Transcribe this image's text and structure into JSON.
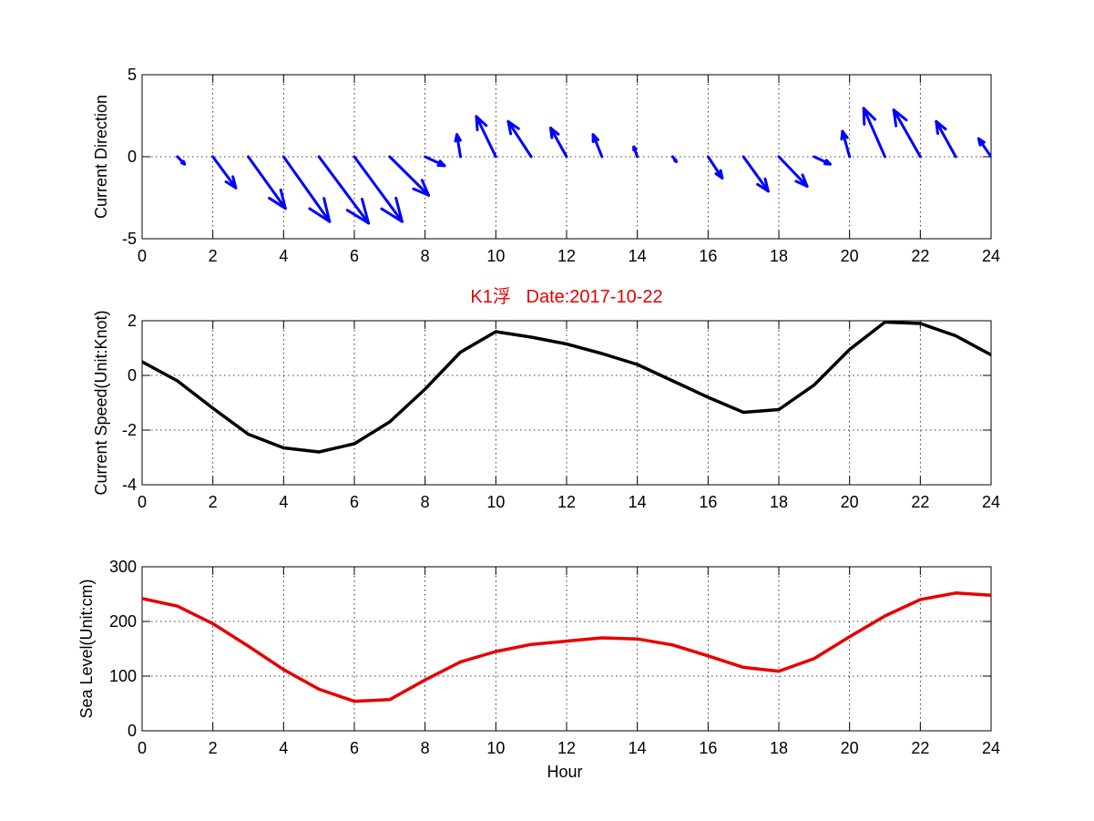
{
  "colors": {
    "quiver": "#0000ff",
    "speed": "#000000",
    "sea_level": "#e60000",
    "title": "#e60000"
  },
  "title": "K1浮   Date:2017-10-22",
  "chart_data": [
    {
      "type": "quiver",
      "ylabel": "Current Direction",
      "xlim": [
        0,
        24
      ],
      "ylim": [
        -5,
        5
      ],
      "xticks": [
        0,
        2,
        4,
        6,
        8,
        10,
        12,
        14,
        16,
        18,
        20,
        22,
        24
      ],
      "yticks": [
        -5,
        0,
        5
      ],
      "grid": true,
      "arrows": [
        {
          "x": 1,
          "u": 0.2,
          "v": -0.45
        },
        {
          "x": 2,
          "u": 0.65,
          "v": -1.9
        },
        {
          "x": 3,
          "u": 1.05,
          "v": -3.15
        },
        {
          "x": 4,
          "u": 1.3,
          "v": -3.95
        },
        {
          "x": 5,
          "u": 1.4,
          "v": -4.05
        },
        {
          "x": 6,
          "u": 1.35,
          "v": -3.95
        },
        {
          "x": 7,
          "u": 1.1,
          "v": -2.35
        },
        {
          "x": 8,
          "u": 0.55,
          "v": -0.55
        },
        {
          "x": 9,
          "u": -0.1,
          "v": 1.35
        },
        {
          "x": 10,
          "u": -0.55,
          "v": 2.45
        },
        {
          "x": 11,
          "u": -0.65,
          "v": 2.15
        },
        {
          "x": 12,
          "u": -0.45,
          "v": 1.75
        },
        {
          "x": 13,
          "u": -0.25,
          "v": 1.35
        },
        {
          "x": 14,
          "u": -0.1,
          "v": 0.6
        },
        {
          "x": 15,
          "u": 0.1,
          "v": -0.3
        },
        {
          "x": 16,
          "u": 0.4,
          "v": -1.3
        },
        {
          "x": 17,
          "u": 0.7,
          "v": -2.1
        },
        {
          "x": 18,
          "u": 0.8,
          "v": -1.8
        },
        {
          "x": 19,
          "u": 0.45,
          "v": -0.45
        },
        {
          "x": 20,
          "u": -0.2,
          "v": 1.55
        },
        {
          "x": 21,
          "u": -0.6,
          "v": 2.95
        },
        {
          "x": 22,
          "u": -0.75,
          "v": 2.85
        },
        {
          "x": 23,
          "u": -0.55,
          "v": 2.15
        },
        {
          "x": 24,
          "u": -0.35,
          "v": 1.1
        }
      ]
    },
    {
      "type": "line",
      "ylabel": "Current Speed(Unit:Knot)",
      "xlim": [
        0,
        24
      ],
      "ylim": [
        -4,
        2
      ],
      "xticks": [
        0,
        2,
        4,
        6,
        8,
        10,
        12,
        14,
        16,
        18,
        20,
        22,
        24
      ],
      "yticks": [
        -4,
        -2,
        0,
        2
      ],
      "grid": true,
      "x": [
        0,
        1,
        2,
        3,
        4,
        5,
        6,
        7,
        8,
        9,
        10,
        11,
        12,
        13,
        14,
        15,
        16,
        17,
        18,
        19,
        20,
        21,
        22,
        23,
        24
      ],
      "y": [
        0.5,
        -0.2,
        -1.2,
        -2.15,
        -2.65,
        -2.8,
        -2.5,
        -1.7,
        -0.5,
        0.85,
        1.6,
        1.4,
        1.15,
        0.8,
        0.4,
        -0.2,
        -0.8,
        -1.35,
        -1.25,
        -0.35,
        0.95,
        1.95,
        1.9,
        1.45,
        0.75
      ]
    },
    {
      "type": "line",
      "ylabel": "Sea Level(Unit:cm)",
      "xlabel": "Hour",
      "xlim": [
        0,
        24
      ],
      "ylim": [
        0,
        300
      ],
      "xticks": [
        0,
        2,
        4,
        6,
        8,
        10,
        12,
        14,
        16,
        18,
        20,
        22,
        24
      ],
      "yticks": [
        0,
        100,
        200,
        300
      ],
      "grid": true,
      "x": [
        0,
        1,
        2,
        3,
        4,
        5,
        6,
        7,
        8,
        9,
        10,
        11,
        12,
        13,
        14,
        15,
        16,
        17,
        18,
        19,
        20,
        21,
        22,
        23,
        24
      ],
      "y": [
        242,
        228,
        196,
        155,
        112,
        76,
        54,
        57,
        93,
        126,
        145,
        158,
        164,
        170,
        168,
        157,
        137,
        116,
        109,
        132,
        172,
        210,
        240,
        252,
        248
      ]
    }
  ]
}
